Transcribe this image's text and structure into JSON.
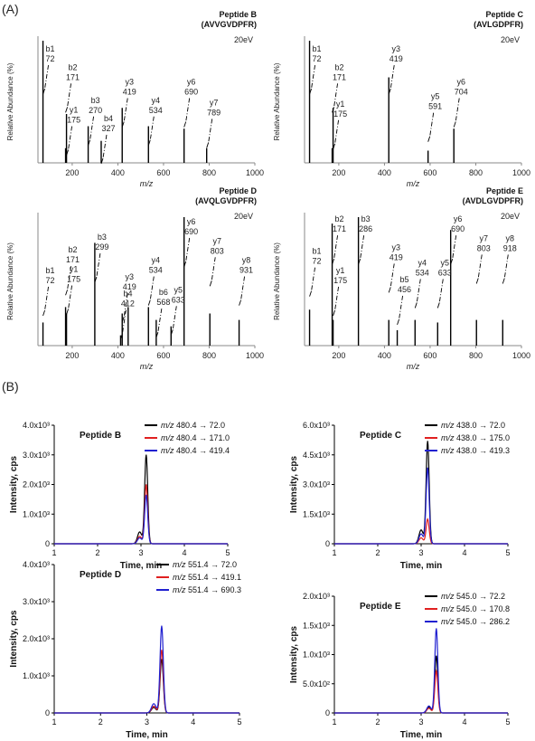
{
  "panel_labels": {
    "a": "(A)",
    "b": "(B)"
  },
  "common": {
    "ms_ylabel": "Relative Abundance (%)",
    "ms_xlabel": "m/z",
    "lc_ylabel": "Intensity, cps",
    "lc_xlabel": "Time, min",
    "colors": {
      "black": "#000000",
      "red": "#e02020",
      "blue": "#2020d0"
    }
  },
  "chart_data": [
    {
      "type": "bar",
      "id": "ms-b",
      "title": "Peptide B",
      "subtitle": "(AVVGVDPFR)",
      "energy": "20eV",
      "xlim": [
        50,
        1000
      ],
      "ylim": [
        0,
        100
      ],
      "xticks": [
        200,
        400,
        600,
        800,
        1000
      ],
      "peaks": [
        [
          72,
          100
        ],
        [
          171,
          12
        ],
        [
          175,
          40
        ],
        [
          270,
          30
        ],
        [
          327,
          18
        ],
        [
          419,
          45
        ],
        [
          534,
          30
        ],
        [
          690,
          28
        ],
        [
          789,
          12
        ]
      ],
      "labels": [
        {
          "ion": "b1",
          "mz": "72",
          "x": 72,
          "y": 97
        },
        {
          "ion": "b2",
          "mz": "171",
          "x": 171,
          "y": 82
        },
        {
          "ion": "y1",
          "mz": "175",
          "x": 175,
          "y": 47
        },
        {
          "ion": "b3",
          "mz": "270",
          "x": 270,
          "y": 55
        },
        {
          "ion": "b4",
          "mz": "327",
          "x": 327,
          "y": 40
        },
        {
          "ion": "y3",
          "mz": "419",
          "x": 419,
          "y": 70
        },
        {
          "ion": "y4",
          "mz": "534",
          "x": 534,
          "y": 55
        },
        {
          "ion": "y6",
          "mz": "690",
          "x": 690,
          "y": 70
        },
        {
          "ion": "y7",
          "mz": "789",
          "x": 789,
          "y": 53
        }
      ]
    },
    {
      "type": "bar",
      "id": "ms-c",
      "title": "Peptide C",
      "subtitle": "(AVLGDPFR)",
      "energy": "20eV",
      "xlim": [
        50,
        1000
      ],
      "ylim": [
        0,
        100
      ],
      "xticks": [
        200,
        400,
        600,
        800,
        1000
      ],
      "peaks": [
        [
          72,
          100
        ],
        [
          171,
          12
        ],
        [
          175,
          45
        ],
        [
          419,
          70
        ],
        [
          591,
          10
        ],
        [
          704,
          28
        ]
      ],
      "labels": [
        {
          "ion": "b1",
          "mz": "72",
          "x": 72,
          "y": 97
        },
        {
          "ion": "b2",
          "mz": "171",
          "x": 171,
          "y": 82
        },
        {
          "ion": "y1",
          "mz": "175",
          "x": 175,
          "y": 52
        },
        {
          "ion": "y3",
          "mz": "419",
          "x": 419,
          "y": 97
        },
        {
          "ion": "y5",
          "mz": "591",
          "x": 591,
          "y": 58
        },
        {
          "ion": "y6",
          "mz": "704",
          "x": 704,
          "y": 70
        }
      ]
    },
    {
      "type": "bar",
      "id": "ms-d",
      "title": "Peptide D",
      "subtitle": "(AVQLGVDPFR)",
      "energy": "20eV",
      "xlim": [
        50,
        1000
      ],
      "ylim": [
        0,
        100
      ],
      "xticks": [
        200,
        400,
        600,
        800,
        1000
      ],
      "peaks": [
        [
          72,
          18
        ],
        [
          171,
          30
        ],
        [
          175,
          25
        ],
        [
          299,
          80
        ],
        [
          412,
          8
        ],
        [
          419,
          25
        ],
        [
          445,
          30
        ],
        [
          534,
          30
        ],
        [
          568,
          20
        ],
        [
          633,
          15
        ],
        [
          690,
          100
        ],
        [
          803,
          25
        ],
        [
          931,
          20
        ]
      ],
      "labels": [
        {
          "ion": "b1",
          "mz": "72",
          "x": 72,
          "y": 62
        },
        {
          "ion": "b2",
          "mz": "171",
          "x": 171,
          "y": 78
        },
        {
          "ion": "y1",
          "mz": "175",
          "x": 175,
          "y": 63
        },
        {
          "ion": "b3",
          "mz": "299",
          "x": 299,
          "y": 88
        },
        {
          "ion": "b4",
          "mz": "412",
          "x": 412,
          "y": 44
        },
        {
          "ion": "y3",
          "mz": "419",
          "x": 419,
          "y": 57
        },
        {
          "ion": "y4",
          "mz": "534",
          "x": 534,
          "y": 70
        },
        {
          "ion": "b6",
          "mz": "568",
          "x": 568,
          "y": 45
        },
        {
          "ion": "y5",
          "mz": "633",
          "x": 633,
          "y": 47
        },
        {
          "ion": "y6",
          "mz": "690",
          "x": 690,
          "y": 100
        },
        {
          "ion": "y7",
          "mz": "803",
          "x": 803,
          "y": 85
        },
        {
          "ion": "y8",
          "mz": "931",
          "x": 931,
          "y": 70
        }
      ]
    },
    {
      "type": "bar",
      "id": "ms-e",
      "title": "Peptide E",
      "subtitle": "(AVDLGVDPFR)",
      "energy": "20eV",
      "xlim": [
        50,
        1000
      ],
      "ylim": [
        0,
        100
      ],
      "xticks": [
        200,
        400,
        600,
        800,
        1000
      ],
      "peaks": [
        [
          72,
          28
        ],
        [
          171,
          95
        ],
        [
          175,
          20
        ],
        [
          286,
          100
        ],
        [
          419,
          20
        ],
        [
          456,
          12
        ],
        [
          534,
          20
        ],
        [
          633,
          18
        ],
        [
          690,
          90
        ],
        [
          803,
          20
        ],
        [
          918,
          20
        ]
      ],
      "labels": [
        {
          "ion": "b1",
          "mz": "72",
          "x": 72,
          "y": 77
        },
        {
          "ion": "b2",
          "mz": "171",
          "x": 171,
          "y": 102
        },
        {
          "ion": "y1",
          "mz": "175",
          "x": 175,
          "y": 62
        },
        {
          "ion": "b3",
          "mz": "286",
          "x": 286,
          "y": 102
        },
        {
          "ion": "y3",
          "mz": "419",
          "x": 419,
          "y": 80
        },
        {
          "ion": "b5",
          "mz": "456",
          "x": 456,
          "y": 55
        },
        {
          "ion": "y4",
          "mz": "534",
          "x": 534,
          "y": 68
        },
        {
          "ion": "y5",
          "mz": "633",
          "x": 633,
          "y": 68
        },
        {
          "ion": "y6",
          "mz": "690",
          "x": 690,
          "y": 102
        },
        {
          "ion": "y7",
          "mz": "803",
          "x": 803,
          "y": 87
        },
        {
          "ion": "y8",
          "mz": "918",
          "x": 918,
          "y": 87
        }
      ]
    },
    {
      "type": "line",
      "id": "lc-b",
      "title": "Peptide B",
      "xlim": [
        1,
        5
      ],
      "xticks": [
        1,
        2,
        3,
        4,
        5
      ],
      "ylim": [
        0,
        4000
      ],
      "yticks": [
        {
          "v": 0,
          "t": "0"
        },
        {
          "v": 1000,
          "t": "1.0x10³"
        },
        {
          "v": 2000,
          "t": "2.0x10³"
        },
        {
          "v": 3000,
          "t": "3.0x10³"
        },
        {
          "v": 4000,
          "t": "4.0x10³"
        }
      ],
      "peak_rt": 3.12,
      "shoulder_rt": 2.97,
      "series": [
        {
          "name": "480.4 → 72.0",
          "color": "#000000",
          "peak": 3000,
          "shoulder": 400
        },
        {
          "name": "480.4 → 171.0",
          "color": "#e02020",
          "peak": 2000,
          "shoulder": 250
        },
        {
          "name": "480.4 → 419.4",
          "color": "#2020d0",
          "peak": 1650,
          "shoulder": 200
        }
      ]
    },
    {
      "type": "line",
      "id": "lc-c",
      "title": "Peptide C",
      "xlim": [
        1,
        5
      ],
      "xticks": [
        1,
        2,
        3,
        4,
        5
      ],
      "ylim": [
        0,
        6000
      ],
      "yticks": [
        {
          "v": 0,
          "t": "0"
        },
        {
          "v": 1500,
          "t": "1.5x10³"
        },
        {
          "v": 3000,
          "t": "3.0x10³"
        },
        {
          "v": 4500,
          "t": "4.5x10³"
        },
        {
          "v": 6000,
          "t": "6.0x10³"
        }
      ],
      "peak_rt": 3.15,
      "shoulder_rt": 3.0,
      "series": [
        {
          "name": "438.0 → 72.0",
          "color": "#000000",
          "peak": 5200,
          "shoulder": 700
        },
        {
          "name": "438.0 → 175.0",
          "color": "#e02020",
          "peak": 1250,
          "shoulder": 300
        },
        {
          "name": "438.0 → 419.3",
          "color": "#2020d0",
          "peak": 3850,
          "shoulder": 500
        }
      ]
    },
    {
      "type": "line",
      "id": "lc-d",
      "title": "Peptide D",
      "xlim": [
        1,
        5
      ],
      "xticks": [
        1,
        2,
        3,
        4,
        5
      ],
      "ylim": [
        0,
        4000
      ],
      "yticks": [
        {
          "v": 0,
          "t": "0"
        },
        {
          "v": 1000,
          "t": "1.0x10³"
        },
        {
          "v": 2000,
          "t": "2.0x10³"
        },
        {
          "v": 3000,
          "t": "3.0x10³"
        },
        {
          "v": 4000,
          "t": "4.0x10³"
        }
      ],
      "peak_rt": 3.32,
      "shoulder_rt": 3.15,
      "series": [
        {
          "name": "551.4 → 72.0",
          "color": "#000000",
          "peak": 1450,
          "shoulder": 150
        },
        {
          "name": "551.4 → 419.1",
          "color": "#e02020",
          "peak": 1700,
          "shoulder": 180
        },
        {
          "name": "551.4 → 690.3",
          "color": "#2020d0",
          "peak": 2350,
          "shoulder": 250
        }
      ]
    },
    {
      "type": "line",
      "id": "lc-e",
      "title": "Peptide E",
      "xlim": [
        1,
        5
      ],
      "xticks": [
        1,
        2,
        3,
        4,
        5
      ],
      "ylim": [
        0,
        2000
      ],
      "yticks": [
        {
          "v": 0,
          "t": "0"
        },
        {
          "v": 500,
          "t": "5.0x10²"
        },
        {
          "v": 1000,
          "t": "1.0x10³"
        },
        {
          "v": 1500,
          "t": "1.5x10³"
        },
        {
          "v": 2000,
          "t": "2.0x10³"
        }
      ],
      "peak_rt": 3.35,
      "shoulder_rt": 3.18,
      "series": [
        {
          "name": "545.0 → 72.2",
          "color": "#000000",
          "peak": 980,
          "shoulder": 100
        },
        {
          "name": "545.0 → 170.8",
          "color": "#e02020",
          "peak": 720,
          "shoulder": 80
        },
        {
          "name": "545.0 → 286.2",
          "color": "#2020d0",
          "peak": 1450,
          "shoulder": 120
        }
      ]
    }
  ]
}
